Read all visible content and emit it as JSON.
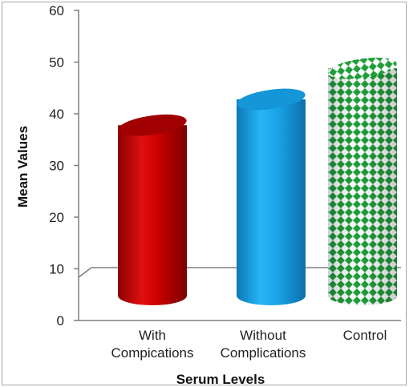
{
  "chart_data": {
    "type": "bar",
    "style": "3d-cylinder",
    "categories": [
      [
        "With",
        "Compications"
      ],
      [
        "Without",
        "Complications"
      ],
      [
        "Control"
      ]
    ],
    "values": [
      44,
      49,
      55
    ],
    "xlabel": "Serum Levels",
    "ylabel": "Mean Values",
    "ylim": [
      0,
      60
    ],
    "yticks": [
      0,
      10,
      20,
      30,
      40,
      50,
      60
    ],
    "grid": false,
    "legend": "none",
    "colors": {
      "with_complications": "#c00000",
      "without_complications": "#1aa3e8",
      "control_pattern": "#1f9e3a",
      "axis": "#7f7f7f"
    }
  }
}
